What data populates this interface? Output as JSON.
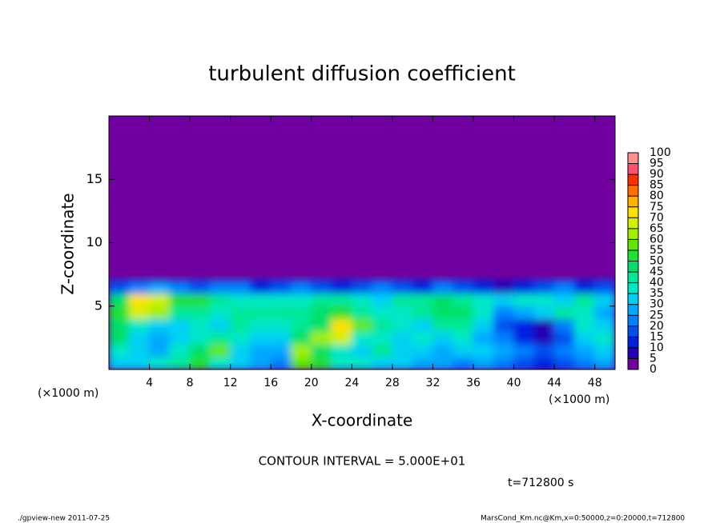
{
  "chart_data": {
    "type": "heatmap",
    "title": "turbulent diffusion coefficient",
    "x_label": "X-coordinate",
    "y_label": "Z-coordinate",
    "x_unit_label": "(×1000 m)",
    "y_unit_label": "(×1000 m)",
    "xlim": [
      0,
      50
    ],
    "ylim": [
      0,
      20
    ],
    "xticks": [
      4,
      8,
      12,
      16,
      20,
      24,
      28,
      32,
      36,
      40,
      44,
      48
    ],
    "yticks": [
      5,
      10,
      15
    ],
    "x_bins": [
      0,
      2,
      4,
      6,
      8,
      10,
      12,
      14,
      16,
      18,
      20,
      22,
      24,
      26,
      28,
      30,
      32,
      34,
      36,
      38,
      40,
      42,
      44,
      46,
      48,
      50
    ],
    "y_bins": [
      0,
      1,
      2,
      3,
      4,
      5,
      6,
      7
    ],
    "z": [
      [
        30,
        30,
        35,
        40,
        50,
        35,
        30,
        25,
        20,
        55,
        50,
        35,
        35,
        30,
        30,
        25,
        25,
        20,
        25,
        20,
        15,
        10,
        15,
        20,
        25
      ],
      [
        35,
        30,
        25,
        35,
        45,
        55,
        30,
        25,
        25,
        60,
        45,
        35,
        30,
        40,
        30,
        30,
        25,
        30,
        30,
        25,
        20,
        15,
        20,
        25,
        30
      ],
      [
        45,
        30,
        25,
        30,
        35,
        40,
        35,
        30,
        30,
        45,
        60,
        65,
        35,
        35,
        30,
        35,
        30,
        35,
        25,
        20,
        10,
        5,
        15,
        30,
        35
      ],
      [
        45,
        35,
        30,
        30,
        35,
        30,
        40,
        35,
        35,
        40,
        45,
        70,
        55,
        40,
        35,
        30,
        40,
        40,
        30,
        15,
        10,
        5,
        20,
        35,
        30
      ],
      [
        50,
        65,
        60,
        40,
        40,
        35,
        40,
        40,
        40,
        40,
        45,
        50,
        40,
        35,
        35,
        40,
        45,
        45,
        35,
        20,
        25,
        30,
        40,
        35,
        25
      ],
      [
        45,
        70,
        65,
        50,
        50,
        40,
        35,
        35,
        35,
        35,
        40,
        40,
        35,
        30,
        40,
        40,
        45,
        40,
        35,
        30,
        35,
        35,
        30,
        40,
        30
      ],
      [
        15,
        20,
        25,
        20,
        15,
        20,
        20,
        10,
        15,
        20,
        15,
        10,
        15,
        20,
        15,
        10,
        20,
        15,
        10,
        5,
        10,
        15,
        20,
        10,
        15
      ]
    ],
    "colorbar_ticks": [
      0,
      5,
      10,
      15,
      20,
      25,
      30,
      35,
      40,
      45,
      50,
      55,
      60,
      65,
      70,
      75,
      80,
      85,
      90,
      95,
      100
    ],
    "colors": [
      "#7000a0",
      "#2400b4",
      "#0020e0",
      "#0050f0",
      "#0080ff",
      "#00a8ff",
      "#00d0f4",
      "#00e8c8",
      "#00e898",
      "#00e068",
      "#20e030",
      "#60e800",
      "#a0f000",
      "#d4f000",
      "#ffe000",
      "#ffb000",
      "#ff7000",
      "#ff3000",
      "#ff5070",
      "#ff9090"
    ],
    "annotations": [
      "CONTOUR INTERVAL = 5.000E+01",
      "t=712800 s"
    ],
    "footer_left": "./gpview-new   2011-07-25",
    "footer_right": "MarsCond_Km.nc@Km,x=0:50000,z=0:20000,t=712800"
  }
}
